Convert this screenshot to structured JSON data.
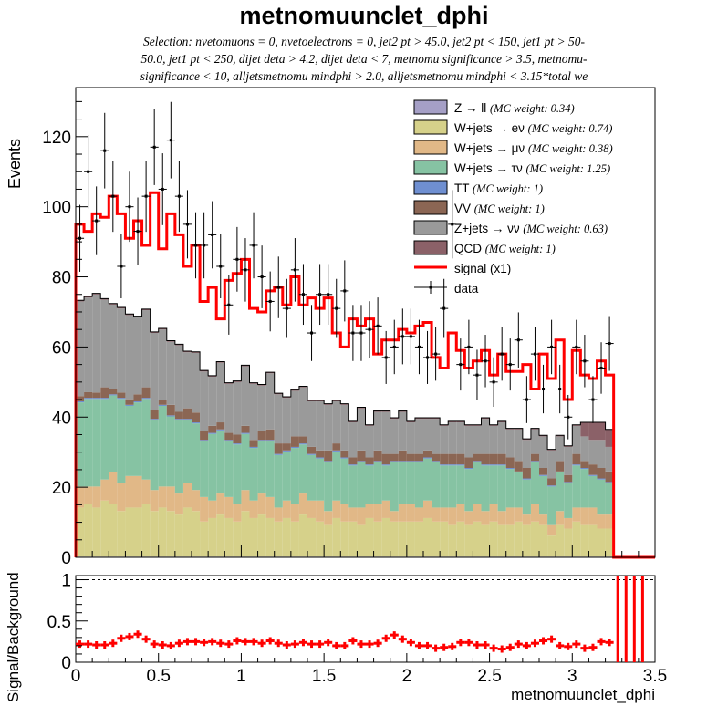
{
  "chart_data": [
    {
      "type": "histogram-stacked",
      "title": "metnomuunclet_dphi",
      "selection": [
        "Selection: nvetomuons = 0, nvetoelectrons = 0, jet2 pt > 45.0, jet2 pt < 150, jet1 pt > 50-",
        "50.0, jet1 pt < 250, dijet deta > 4.2, dijet deta < 7, metnomu significance > 3.5, metnomu-",
        "significance < 10, alljetsmetnomu mindphi > 2.0, alljetsmetnomu mindphi < 3.15*total we"
      ],
      "ylabel": "Events",
      "xlim": [
        0,
        3.5
      ],
      "ylim": [
        0,
        134
      ],
      "yticks": [
        0,
        20,
        40,
        60,
        80,
        100,
        120
      ],
      "legend_position": "top-right",
      "bin_width": 0.05,
      "stack_series": [
        {
          "name": "Z → ll",
          "weight": "(MC weight: 0.34)",
          "color": "#a59fc6",
          "values": [
            0.2,
            0.2,
            0.2,
            0.2,
            0.2,
            0.2,
            0.2,
            0.2,
            0.2,
            0.2,
            0.2,
            0.2,
            0.2,
            0.2,
            0.2,
            0.2,
            0.2,
            0.2,
            0.2,
            0.2,
            0.2,
            0.2,
            0.2,
            0.2,
            0.2,
            0.2,
            0.2,
            0.2,
            0.2,
            0.2,
            0.2,
            0.2,
            0.2,
            0.2,
            0.2,
            0.2,
            0.2,
            0.2,
            0.2,
            0.2,
            0.2,
            0.2,
            0.2,
            0.2,
            0.2,
            0.2,
            0.2,
            0.2,
            0.2,
            0.2,
            0.2,
            0.2,
            0.2,
            0.2,
            0.2,
            0.2,
            0.2,
            0.2,
            0.2,
            0.2,
            0.2,
            0.2,
            0.2,
            0.2,
            0.2,
            0,
            0,
            0,
            0,
            0
          ]
        },
        {
          "name": "W+jets → eν",
          "weight": "(MC weight: 0.74)",
          "color": "#d6d18a",
          "values": [
            14,
            15,
            14,
            16,
            15,
            13,
            14,
            14,
            15,
            13,
            14,
            13,
            12,
            14,
            13,
            10,
            11,
            12,
            11,
            10,
            13,
            11,
            12,
            11,
            10,
            11,
            10,
            12,
            11,
            10,
            9,
            11,
            10,
            10,
            9,
            11,
            10,
            11,
            10,
            10,
            10,
            10,
            11,
            10,
            10,
            9,
            10,
            9,
            10,
            9,
            10,
            9,
            9,
            10,
            9,
            10,
            9,
            6,
            9,
            8,
            10,
            9,
            9,
            8,
            8,
            0,
            0,
            0,
            0,
            0
          ]
        },
        {
          "name": "W+jets → μν",
          "weight": "(MC weight: 0.38)",
          "color": "#e1b887",
          "values": [
            6,
            5,
            6,
            6,
            9,
            8,
            9,
            9,
            7,
            6,
            6,
            7,
            6,
            7,
            6,
            7,
            5,
            6,
            6,
            5,
            6,
            5,
            6,
            6,
            4,
            5,
            5,
            6,
            5,
            6,
            4,
            5,
            5,
            4,
            5,
            4,
            5,
            5,
            3,
            5,
            5,
            4,
            5,
            4,
            4,
            5,
            5,
            4,
            5,
            4,
            5,
            4,
            5,
            4,
            3,
            5,
            3,
            3,
            4,
            3,
            4,
            5,
            5,
            4,
            4,
            0,
            0,
            0,
            0,
            0
          ]
        },
        {
          "name": "W+jets → τν",
          "weight": "(MC weight: 1.25)",
          "color": "#86c3a3",
          "values": [
            24,
            25,
            25,
            23,
            22,
            24,
            20,
            21,
            23,
            20,
            23,
            20,
            21,
            18,
            19,
            16,
            19,
            18,
            16,
            17,
            16,
            15,
            15,
            16,
            15,
            14,
            16,
            14,
            13,
            12,
            14,
            14,
            13,
            12,
            13,
            11,
            12,
            10,
            14,
            12,
            12,
            13,
            12,
            13,
            12,
            12,
            11,
            12,
            12,
            13,
            11,
            13,
            11,
            10,
            10,
            12,
            11,
            11,
            11,
            10,
            12,
            11,
            9,
            10,
            9,
            0,
            0,
            0,
            0,
            0
          ]
        },
        {
          "name": "TT",
          "weight": "(MC weight: 1)",
          "color": "#6f8fd1",
          "values": [
            0.3,
            0.3,
            0.3,
            0.3,
            0.3,
            0.3,
            0.3,
            0.3,
            0.3,
            0.3,
            0.3,
            0.3,
            0.3,
            0.3,
            0.3,
            0.3,
            0.3,
            0.3,
            0.3,
            0.3,
            0.3,
            0.3,
            0.3,
            0.3,
            0.3,
            0.3,
            0.3,
            0.3,
            0.3,
            0.3,
            0.3,
            0.3,
            0.3,
            0.3,
            0.3,
            0.3,
            0.3,
            0.3,
            0.3,
            0.3,
            0.3,
            0.3,
            0.3,
            0.3,
            0.3,
            0.3,
            0.3,
            0.3,
            0.3,
            0.3,
            0.3,
            0.3,
            0.3,
            0.3,
            0.3,
            0.3,
            0.3,
            0.3,
            0.3,
            0.3,
            0.3,
            0.3,
            0.3,
            0.3,
            0.3,
            0,
            0,
            0,
            0,
            0
          ]
        },
        {
          "name": "VV",
          "weight": "(MC weight: 1)",
          "color": "#8b6654",
          "values": [
            1.5,
            1.6,
            1.5,
            3,
            1.6,
            1.5,
            1.6,
            2,
            3,
            2.5,
            1.5,
            3,
            2,
            3,
            2.8,
            2.5,
            2,
            2,
            2,
            2.5,
            2,
            2,
            2.5,
            3,
            3,
            2,
            3,
            2,
            2,
            2,
            3,
            2,
            2,
            2,
            3,
            2,
            3,
            3,
            2,
            3,
            2,
            2,
            2,
            2,
            3,
            3,
            3,
            3,
            2,
            3,
            3,
            3,
            3,
            3,
            3,
            2,
            2,
            2,
            3,
            2,
            3,
            2,
            3,
            3,
            3,
            0,
            0,
            0,
            0,
            0
          ]
        },
        {
          "name": "Z+jets → νν",
          "weight": "(MC weight: 0.63)",
          "color": "#9a9a9a",
          "values": [
            27,
            27,
            28,
            25,
            24,
            24,
            24,
            22,
            22,
            22,
            20,
            18,
            19,
            16,
            17,
            17,
            14,
            17,
            14,
            15,
            17,
            16,
            13,
            16,
            14,
            13,
            13,
            14,
            13,
            14,
            13,
            12,
            13,
            10,
            12,
            9,
            11,
            12,
            10,
            11,
            9,
            10,
            9,
            10,
            8,
            9,
            9,
            9,
            8,
            10,
            8,
            9,
            8,
            9,
            8,
            7,
            9,
            8,
            7,
            8,
            8,
            7,
            7,
            8,
            7,
            0,
            0,
            0,
            0,
            0
          ]
        },
        {
          "name": "QCD",
          "weight": "(MC weight: 1)",
          "color": "#8b6168",
          "values": [
            0.3,
            0.3,
            0.3,
            0.3,
            0.3,
            0.3,
            0.3,
            0.3,
            0.3,
            0.3,
            0.3,
            0.3,
            0.3,
            0.3,
            0.3,
            0.3,
            0.3,
            0.3,
            0.3,
            0.3,
            0.3,
            0.3,
            0.3,
            0.3,
            0.3,
            0.3,
            0.3,
            0.3,
            0.3,
            0.3,
            0.3,
            0.3,
            0.3,
            0.3,
            0.3,
            0.3,
            0.3,
            0.3,
            0.3,
            0.3,
            0.3,
            0.3,
            0.3,
            0.3,
            0.3,
            0.3,
            0.3,
            0.3,
            0.3,
            0.3,
            0.3,
            0.3,
            0.3,
            0.3,
            0.3,
            0.3,
            0.3,
            0.3,
            0.3,
            0.3,
            0.3,
            4,
            5,
            5,
            5,
            0,
            0,
            0,
            0,
            0
          ]
        }
      ],
      "signal": {
        "name": "signal (x1)",
        "color": "#ff0000",
        "values": [
          95,
          93,
          98,
          97,
          103,
          98,
          91,
          96,
          89,
          104,
          88,
          98,
          92,
          83,
          89,
          73,
          77,
          68,
          79,
          81,
          85,
          71,
          70,
          76,
          77,
          72,
          80,
          72,
          74,
          71,
          74,
          64,
          60,
          68,
          66,
          68,
          58,
          62,
          62,
          65,
          64,
          66,
          67,
          57,
          54,
          64,
          59,
          54,
          56,
          59,
          52,
          58,
          53,
          53,
          55,
          48,
          58,
          51,
          62,
          45,
          59,
          52,
          51,
          56,
          52,
          0,
          0,
          0,
          0,
          0
        ]
      },
      "data": {
        "name": "data",
        "values": [
          91,
          110,
          96,
          116,
          103,
          83,
          100,
          93,
          103,
          117,
          105,
          119,
          103,
          95,
          89,
          89,
          92,
          83,
          72,
          85,
          82,
          89,
          80,
          73,
          77,
          71,
          82,
          75,
          64,
          75,
          75,
          71,
          76,
          64,
          64,
          65,
          66,
          57,
          60,
          63,
          63,
          60,
          57,
          58,
          71,
          95,
          55,
          60,
          52,
          56,
          50,
          58,
          55,
          62,
          45,
          58,
          48,
          60,
          48,
          40,
          60,
          56,
          45,
          54,
          61,
          0,
          0,
          0,
          0,
          0
        ]
      }
    },
    {
      "type": "ratio",
      "ylabel": "Signal/Background",
      "xlabel": "metnomuunclet_dphi",
      "xlim": [
        0,
        3.5
      ],
      "ylim": [
        0,
        1.05
      ],
      "yticks": [
        0,
        0.5,
        1
      ],
      "xticks": [
        0,
        0.5,
        1,
        1.5,
        2,
        2.5,
        3,
        3.5
      ],
      "values": [
        0.22,
        0.22,
        0.21,
        0.21,
        0.23,
        0.29,
        0.31,
        0.34,
        0.28,
        0.22,
        0.21,
        0.2,
        0.23,
        0.25,
        0.25,
        0.24,
        0.25,
        0.23,
        0.22,
        0.26,
        0.25,
        0.25,
        0.23,
        0.26,
        0.23,
        0.21,
        0.22,
        0.24,
        0.22,
        0.22,
        0.24,
        0.2,
        0.2,
        0.26,
        0.22,
        0.22,
        0.23,
        0.29,
        0.33,
        0.28,
        0.24,
        0.2,
        0.2,
        0.17,
        0.18,
        0.19,
        0.24,
        0.24,
        0.21,
        0.21,
        0.17,
        0.16,
        0.18,
        0.22,
        0.2,
        0.23,
        0.26,
        0.28,
        0.2,
        0.19,
        0.22,
        0.17,
        0.18,
        0.25,
        0.24,
        1.05,
        1.05,
        1.05,
        1.05,
        0
      ]
    }
  ]
}
